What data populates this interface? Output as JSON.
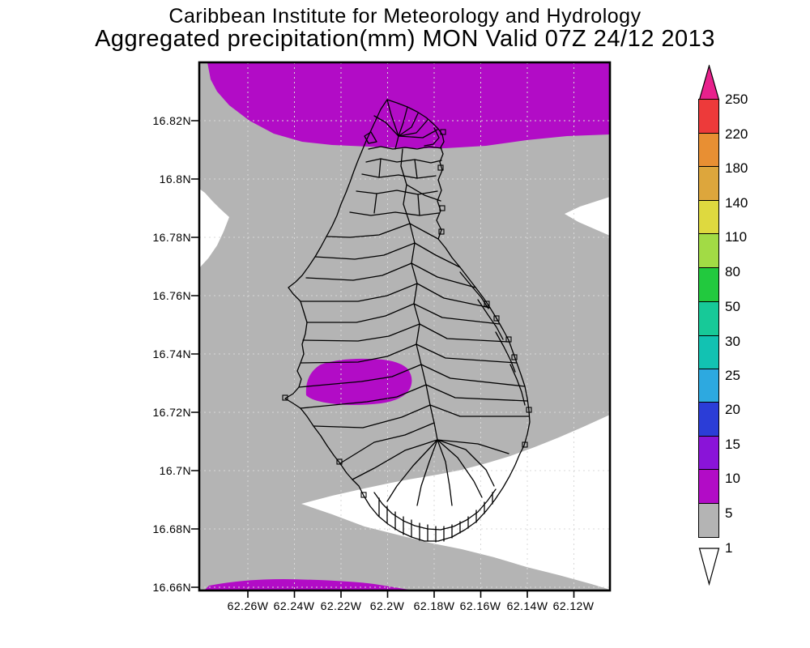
{
  "title": {
    "line1": "Caribbean Institute for Meteorology and Hydrology",
    "line2": "Aggregated precipitation(mm) MON Valid 07Z 24/12 2013"
  },
  "map": {
    "y_axis_labels": [
      "16.82N",
      "16.8N",
      "16.78N",
      "16.76N",
      "16.74N",
      "16.72N",
      "16.7N",
      "16.68N",
      "16.66N"
    ],
    "x_axis_labels": [
      "62.26W",
      "62.24W",
      "62.22W",
      "62.2W",
      "62.18W",
      "62.16W",
      "62.14W",
      "62.12W"
    ],
    "colors": {
      "background_1_5mm": "#b4b4b4",
      "below_1mm": "#ffffff",
      "shade_5_10mm": "#b20cc6",
      "coastline": "#000000",
      "grid": "#d8d8d8"
    },
    "shaded_regions": [
      {
        "value_range_mm": "5-10",
        "location": "band across north of map"
      },
      {
        "value_range_mm": "5-10",
        "location": "west-central patch over island"
      },
      {
        "value_range_mm": "5-10",
        "location": "thin sliver at south edge"
      },
      {
        "value_range_mm": "<1",
        "location": "west edge patch near 16.78N"
      },
      {
        "value_range_mm": "<1",
        "location": "east edge notch near 16.78N"
      },
      {
        "value_range_mm": "<1",
        "location": "large southeast area"
      },
      {
        "value_range_mm": "1-5",
        "location": "background"
      }
    ]
  },
  "colorbar": {
    "labels": [
      "250",
      "220",
      "180",
      "140",
      "110",
      "80",
      "50",
      "30",
      "25",
      "20",
      "15",
      "10",
      "5",
      "1"
    ],
    "segment_colors_top_to_bottom": [
      "#ed3a3a",
      "#e88f33",
      "#dda63c",
      "#ded93f",
      "#a2db45",
      "#22c93e",
      "#17c998",
      "#12c2b2",
      "#2da9e0",
      "#2b3dd7",
      "#8a14d8",
      "#b20cc6",
      "#b4b4b4"
    ],
    "arrow_top_color": "#e8218c",
    "arrow_bottom_color": "#ffffff"
  }
}
